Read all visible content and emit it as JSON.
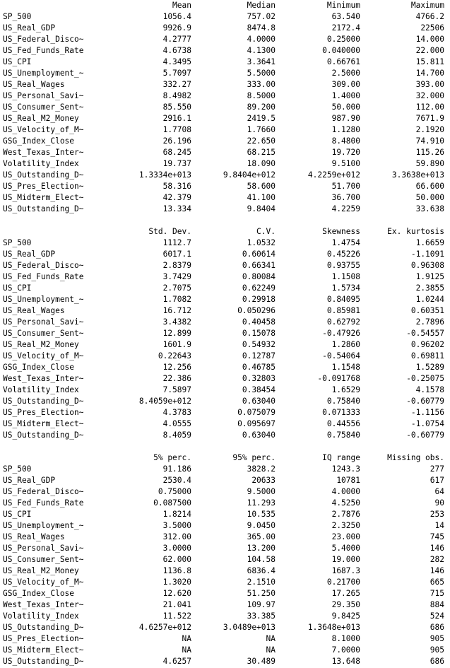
{
  "tables": [
    {
      "headers": [
        "Mean",
        "Median",
        "Minimum",
        "Maximum"
      ],
      "rows": [
        [
          "SP_500",
          "1056.4",
          "757.02",
          "63.540",
          "4766.2"
        ],
        [
          "US_Real_GDP",
          "9926.9",
          "8474.8",
          "2172.4",
          "22506"
        ],
        [
          "US_Federal_Disco~",
          "4.2777",
          "4.0000",
          "0.25000",
          "14.000"
        ],
        [
          "US_Fed_Funds_Rate",
          "4.6738",
          "4.1300",
          "0.040000",
          "22.000"
        ],
        [
          "US_CPI",
          "4.3495",
          "3.3641",
          "0.66761",
          "15.811"
        ],
        [
          "US_Unemployment_~",
          "5.7097",
          "5.5000",
          "2.5000",
          "14.700"
        ],
        [
          "US_Real_Wages",
          "332.27",
          "333.00",
          "309.00",
          "393.00"
        ],
        [
          "US_Personal_Savi~",
          "8.4982",
          "8.5000",
          "1.4000",
          "32.000"
        ],
        [
          "US_Consumer_Sent~",
          "85.550",
          "89.200",
          "50.000",
          "112.00"
        ],
        [
          "US_Real_M2_Money",
          "2916.1",
          "2419.5",
          "987.90",
          "7671.9"
        ],
        [
          "US_Velocity_of_M~",
          "1.7708",
          "1.7660",
          "1.1280",
          "2.1920"
        ],
        [
          "GSG_Index_Close",
          "26.196",
          "22.650",
          "8.4800",
          "74.910"
        ],
        [
          "West_Texas_Inter~",
          "68.245",
          "68.215",
          "19.720",
          "115.26"
        ],
        [
          "Volatility_Index",
          "19.737",
          "18.090",
          "9.5100",
          "59.890"
        ],
        [
          "US_Outstanding_D~",
          "1.3334e+013",
          "9.8404e+012",
          "4.2259e+012",
          "3.3638e+013"
        ],
        [
          "US_Pres_Election~",
          "58.316",
          "58.600",
          "51.700",
          "66.600"
        ],
        [
          "US_Midterm_Elect~",
          "42.379",
          "41.100",
          "36.700",
          "50.000"
        ],
        [
          "US_Outstanding_D~",
          "13.334",
          "9.8404",
          "4.2259",
          "33.638"
        ]
      ]
    },
    {
      "headers": [
        "Std. Dev.",
        "C.V.",
        "Skewness",
        "Ex. kurtosis"
      ],
      "rows": [
        [
          "SP_500",
          "1112.7",
          "1.0532",
          "1.4754",
          "1.6659"
        ],
        [
          "US_Real_GDP",
          "6017.1",
          "0.60614",
          "0.45226",
          "-1.1091"
        ],
        [
          "US_Federal_Disco~",
          "2.8379",
          "0.66341",
          "0.93755",
          "0.96308"
        ],
        [
          "US_Fed_Funds_Rate",
          "3.7429",
          "0.80084",
          "1.1508",
          "1.9125"
        ],
        [
          "US_CPI",
          "2.7075",
          "0.62249",
          "1.5734",
          "2.3855"
        ],
        [
          "US_Unemployment_~",
          "1.7082",
          "0.29918",
          "0.84095",
          "1.0244"
        ],
        [
          "US_Real_Wages",
          "16.712",
          "0.050296",
          "0.85981",
          "0.60351"
        ],
        [
          "US_Personal_Savi~",
          "3.4382",
          "0.40458",
          "0.62792",
          "2.7896"
        ],
        [
          "US_Consumer_Sent~",
          "12.899",
          "0.15078",
          "-0.47926",
          "-0.54557"
        ],
        [
          "US_Real_M2_Money",
          "1601.9",
          "0.54932",
          "1.2860",
          "0.96202"
        ],
        [
          "US_Velocity_of_M~",
          "0.22643",
          "0.12787",
          "-0.54064",
          "0.69811"
        ],
        [
          "GSG_Index_Close",
          "12.256",
          "0.46785",
          "1.1548",
          "1.5289"
        ],
        [
          "West_Texas_Inter~",
          "22.386",
          "0.32803",
          "-0.091768",
          "-0.25075"
        ],
        [
          "Volatility_Index",
          "7.5897",
          "0.38454",
          "1.6529",
          "4.1578"
        ],
        [
          "US_Outstanding_D~",
          "8.4059e+012",
          "0.63040",
          "0.75840",
          "-0.60779"
        ],
        [
          "US_Pres_Election~",
          "4.3783",
          "0.075079",
          "0.071333",
          "-1.1156"
        ],
        [
          "US_Midterm_Elect~",
          "4.0555",
          "0.095697",
          "0.44556",
          "-1.0754"
        ],
        [
          "US_Outstanding_D~",
          "8.4059",
          "0.63040",
          "0.75840",
          "-0.60779"
        ]
      ]
    },
    {
      "headers": [
        "5% perc.",
        "95% perc.",
        "IQ range",
        "Missing obs."
      ],
      "rows": [
        [
          "SP_500",
          "91.186",
          "3828.2",
          "1243.3",
          "277"
        ],
        [
          "US_Real_GDP",
          "2530.4",
          "20633",
          "10781",
          "617"
        ],
        [
          "US_Federal_Disco~",
          "0.75000",
          "9.5000",
          "4.0000",
          "64"
        ],
        [
          "US_Fed_Funds_Rate",
          "0.087500",
          "11.293",
          "4.5250",
          "90"
        ],
        [
          "US_CPI",
          "1.8214",
          "10.535",
          "2.7876",
          "253"
        ],
        [
          "US_Unemployment_~",
          "3.5000",
          "9.0450",
          "2.3250",
          "14"
        ],
        [
          "US_Real_Wages",
          "312.00",
          "365.00",
          "23.000",
          "745"
        ],
        [
          "US_Personal_Savi~",
          "3.0000",
          "13.200",
          "5.4000",
          "146"
        ],
        [
          "US_Consumer_Sent~",
          "62.000",
          "104.58",
          "19.000",
          "282"
        ],
        [
          "US_Real_M2_Money",
          "1136.8",
          "6836.4",
          "1687.3",
          "146"
        ],
        [
          "US_Velocity_of_M~",
          "1.3020",
          "2.1510",
          "0.21700",
          "665"
        ],
        [
          "GSG_Index_Close",
          "12.620",
          "51.250",
          "17.265",
          "715"
        ],
        [
          "West_Texas_Inter~",
          "21.041",
          "109.97",
          "29.350",
          "884"
        ],
        [
          "Volatility_Index",
          "11.522",
          "33.385",
          "9.8425",
          "524"
        ],
        [
          "US_Outstanding_D~",
          "4.6257e+012",
          "3.0489e+013",
          "1.3648e+013",
          "686"
        ],
        [
          "US_Pres_Election~",
          "NA",
          "NA",
          "8.1000",
          "905"
        ],
        [
          "US_Midterm_Elect~",
          "NA",
          "NA",
          "7.0000",
          "905"
        ],
        [
          "US_Outstanding_D~",
          "4.6257",
          "30.489",
          "13.648",
          "686"
        ]
      ]
    }
  ]
}
